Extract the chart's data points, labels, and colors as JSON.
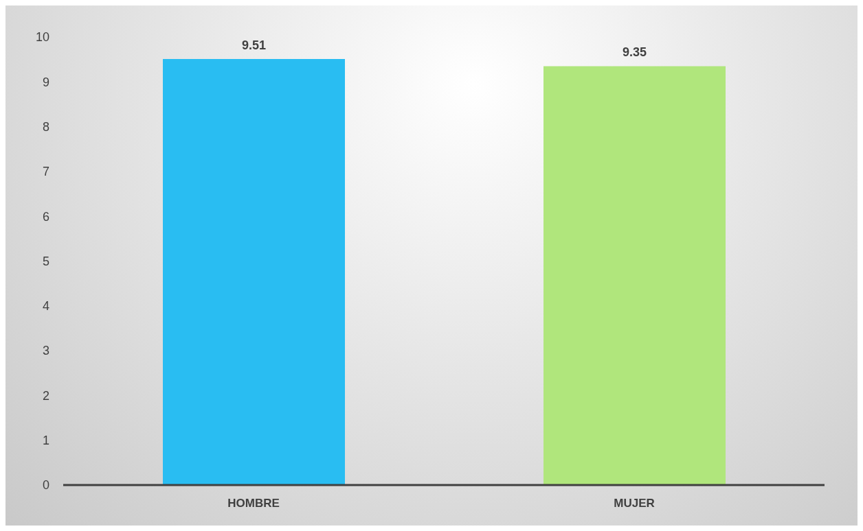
{
  "chart_data": {
    "type": "bar",
    "categories": [
      "HOMBRE",
      "MUJER"
    ],
    "values": [
      9.51,
      9.35
    ],
    "colors": [
      "#29bdf2",
      "#b0e67c"
    ],
    "ylim": [
      0,
      10
    ],
    "yticks": [
      0,
      1,
      2,
      3,
      4,
      5,
      6,
      7,
      8,
      9,
      10
    ],
    "data_labels": true
  }
}
